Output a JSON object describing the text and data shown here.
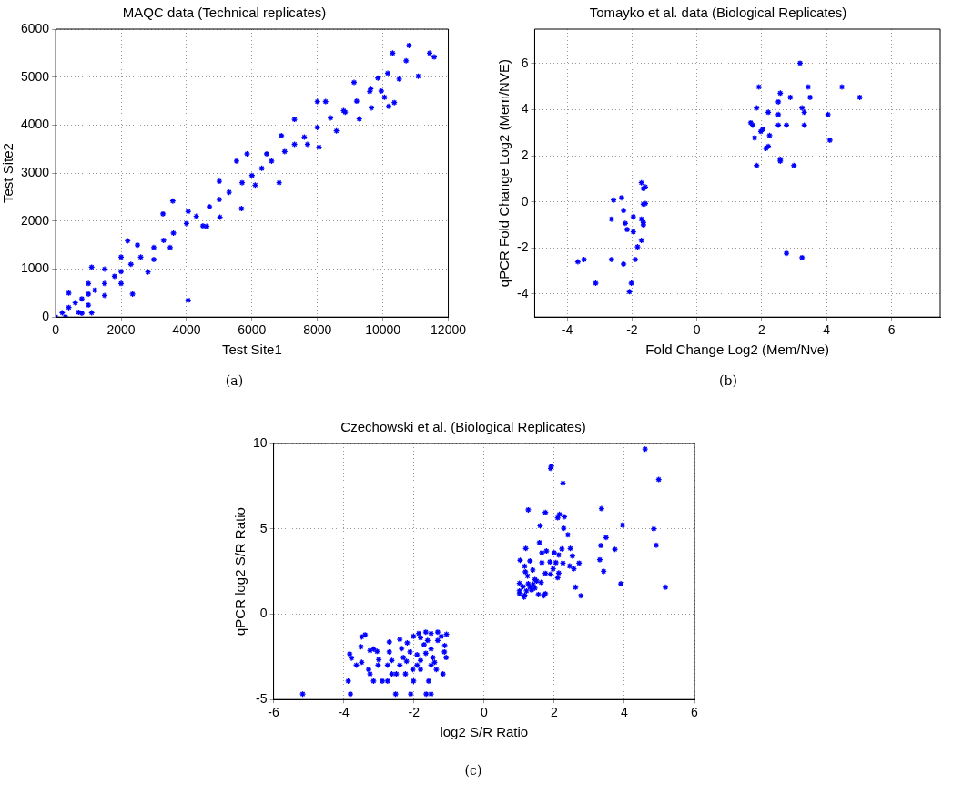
{
  "chart_data": [
    {
      "type": "scatter",
      "title": "MAQC data (Technical replicates)",
      "xlabel": "Test Site1",
      "ylabel": "Test Site2",
      "color": "#0000ff",
      "marker": "cross",
      "grid": true,
      "xlim": [
        0,
        12000
      ],
      "ylim": [
        0,
        6000
      ],
      "xticks": [
        0,
        2000,
        4000,
        6000,
        8000,
        10000,
        12000
      ],
      "yticks": [
        0,
        1000,
        2000,
        3000,
        4000,
        5000,
        6000
      ],
      "annotations": [
        "(a)"
      ],
      "x": [
        10800,
        10300,
        11430,
        11570,
        10710,
        11080,
        10500,
        10150,
        9850,
        9120,
        9630,
        9950,
        10050,
        10350,
        10180,
        9650,
        9280,
        8850,
        8250,
        8000,
        8580,
        8050,
        7700,
        7300,
        6900,
        6830,
        6450,
        6100,
        5850,
        5530,
        5680,
        5000,
        5020,
        4620,
        4050,
        3580,
        3280,
        4050,
        2350,
        2820,
        2200,
        1100,
        1100,
        800,
        0,
        200,
        400,
        600,
        800,
        1000,
        1200,
        1500,
        1800,
        2000,
        2300,
        2600,
        3000,
        3300,
        3600,
        4000,
        4300,
        4700,
        5000,
        5300,
        5700,
        6000,
        6300,
        6600,
        7000,
        7300,
        7600,
        8000,
        8400,
        8800,
        9200,
        9600,
        1000,
        1500,
        1000,
        2000,
        2500,
        3000,
        400,
        700,
        300,
        1500,
        2000,
        3500,
        4500
      ],
      "values": [
        5660,
        5500,
        5500,
        5420,
        5340,
        5020,
        4960,
        5080,
        4980,
        4890,
        4760,
        4710,
        4580,
        4470,
        4390,
        4360,
        4130,
        4270,
        4490,
        4490,
        3880,
        3540,
        3600,
        4120,
        3780,
        2800,
        3400,
        2750,
        3400,
        3250,
        2260,
        2830,
        2080,
        1890,
        2200,
        2420,
        2150,
        350,
        480,
        940,
        1590,
        1040,
        90,
        80,
        0,
        90,
        200,
        300,
        380,
        480,
        560,
        700,
        850,
        950,
        1100,
        1250,
        1450,
        1600,
        1750,
        1950,
        2100,
        2300,
        2450,
        2600,
        2800,
        2950,
        3100,
        3250,
        3450,
        3600,
        3750,
        3950,
        4150,
        4300,
        4500,
        4700,
        700,
        1000,
        250,
        700,
        1500,
        1200,
        500,
        100,
        0,
        450,
        1250,
        1450,
        1900
      ]
    },
    {
      "type": "scatter",
      "title": "Tomayko et al. data (Biological Replicates)",
      "xlabel": "Fold Change Log2 (Mem/Nve)",
      "ylabel": "qPCR Fold Change Log2 (Mem/NVE)",
      "color": "#0000ff",
      "marker": "cross",
      "grid": true,
      "xlim": [
        -5,
        7.5
      ],
      "ylim": [
        -5,
        7.5
      ],
      "xticks": [
        -4,
        -2,
        0,
        2,
        4,
        6
      ],
      "yticks": [
        -4,
        -2,
        0,
        2,
        4,
        6
      ],
      "annotations": [
        "(b)"
      ],
      "x": [
        3.18,
        1.91,
        2.57,
        3.43,
        4.47,
        2.51,
        2.88,
        3.49,
        5.02,
        1.84,
        3.24,
        2.2,
        3.31,
        2.51,
        4.04,
        1.66,
        1.72,
        2.51,
        2.76,
        3.31,
        2.03,
        1.97,
        1.78,
        2.24,
        4.1,
        2.2,
        2.13,
        2.57,
        2.57,
        1.84,
        2.99,
        2.76,
        3.24,
        -1.71,
        -1.65,
        -1.59,
        -2.32,
        -2.57,
        -1.65,
        -1.59,
        -2.26,
        -1.96,
        -2.63,
        -1.71,
        -1.65,
        -1.65,
        -2.21,
        -2.15,
        -1.96,
        -1.71,
        -1.83,
        -3.67,
        -3.48,
        -2.63,
        -1.9,
        -2.26,
        -3.12,
        -2.02,
        -2.08
      ],
      "values": [
        6.02,
        4.99,
        4.72,
        4.99,
        4.99,
        4.34,
        4.54,
        4.54,
        4.54,
        4.08,
        4.08,
        3.89,
        3.89,
        3.79,
        3.79,
        3.43,
        3.33,
        3.33,
        3.33,
        3.33,
        3.15,
        3.06,
        2.78,
        2.88,
        2.68,
        2.41,
        2.32,
        1.85,
        1.77,
        1.58,
        1.58,
        -2.23,
        -2.42,
        0.83,
        0.58,
        0.65,
        0.18,
        0.08,
        -0.1,
        -0.07,
        -0.37,
        -0.65,
        -0.75,
        -0.75,
        -0.89,
        -1.0,
        -0.93,
        -1.2,
        -1.3,
        -1.67,
        -1.95,
        -2.6,
        -2.5,
        -2.5,
        -2.5,
        -2.7,
        -3.53,
        -3.53,
        -3.9
      ]
    },
    {
      "type": "scatter",
      "title": "Czechowski et al. (Biological Replicates)",
      "xlabel": "log2 S/R Ratio",
      "ylabel": "qPCR log2 S/R Ratio",
      "color": "#0000ff",
      "marker": "cross",
      "grid": true,
      "xlim": [
        -6,
        6
      ],
      "ylim": [
        -5,
        10
      ],
      "xticks": [
        -6,
        -4,
        -2,
        0,
        2,
        4,
        6
      ],
      "yticks": [
        -5,
        0,
        5,
        10
      ],
      "annotations": [
        "(c)"
      ],
      "x": [
        4.59,
        1.92,
        1.9,
        2.25,
        4.98,
        1.26,
        1.75,
        3.35,
        2.15,
        2.1,
        2.29,
        1.6,
        3.95,
        2.27,
        4.84,
        2.39,
        3.48,
        1.58,
        3.33,
        4.91,
        1.19,
        2.22,
        2.46,
        3.73,
        1.78,
        1.65,
        2.0,
        2.13,
        2.52,
        1.03,
        1.31,
        1.65,
        1.88,
        2.05,
        2.25,
        2.71,
        3.3,
        1.16,
        2.44,
        2.56,
        1.39,
        1.97,
        1.18,
        1.75,
        1.9,
        2.13,
        3.41,
        1.24,
        2.1,
        1.45,
        1.5,
        1.63,
        1.01,
        1.26,
        1.4,
        3.9,
        1.11,
        1.31,
        1.45,
        2.61,
        5.17,
        1.01,
        1.21,
        1.36,
        1.01,
        1.16,
        1.55,
        1.7,
        2.76,
        1.14,
        1.75,
        -5.17,
        -3.81,
        -2.52,
        -2.09,
        -1.65,
        -1.51,
        -3.87,
        -3.15,
        -2.9,
        -2.75,
        -2.01,
        -1.58,
        -3.25,
        -2.63,
        -2.5,
        -2.24,
        -1.17,
        -3.29,
        -2.03,
        -1.81,
        -1.36,
        -3.64,
        -3.49,
        -3.02,
        -2.75,
        -2.4,
        -1.91,
        -1.51,
        -3.78,
        -3.0,
        -2.63,
        -2.3,
        -1.81,
        -1.08,
        -3.83,
        -3.25,
        -2.7,
        -2.11,
        -1.66,
        -1.13,
        -3.51,
        -3.15,
        -2.35,
        -1.51,
        -3.05,
        -2.4,
        -2.7,
        -2.19,
        -1.81,
        -1.61,
        -1.12,
        -3.39,
        -3.49,
        -2.01,
        -1.86,
        -1.66,
        -1.32,
        -1.07,
        -1.51,
        -1.22,
        -1.32,
        -1.71,
        -1.91,
        -1.46,
        -2.21,
        -1.41
      ],
      "values": [
        9.67,
        8.67,
        8.54,
        7.67,
        7.89,
        6.11,
        5.96,
        6.18,
        5.85,
        5.65,
        5.71,
        5.18,
        5.22,
        5.03,
        5.0,
        4.65,
        4.49,
        4.19,
        4.02,
        4.04,
        3.85,
        3.82,
        3.85,
        3.8,
        3.7,
        3.6,
        3.6,
        3.47,
        3.41,
        3.16,
        3.12,
        3.02,
        3.06,
        3.02,
        2.99,
        2.99,
        3.19,
        2.81,
        2.82,
        2.66,
        2.59,
        2.66,
        2.48,
        2.39,
        2.34,
        2.41,
        2.51,
        2.24,
        2.14,
        2.03,
        1.94,
        1.86,
        1.81,
        1.78,
        1.73,
        1.78,
        1.61,
        1.58,
        1.53,
        1.58,
        1.58,
        1.36,
        1.36,
        1.41,
        1.2,
        1.11,
        1.15,
        1.08,
        1.08,
        1.0,
        1.2,
        -4.68,
        -4.68,
        -4.68,
        -4.68,
        -4.68,
        -4.68,
        -3.92,
        -3.92,
        -3.92,
        -3.92,
        -3.92,
        -3.92,
        -3.5,
        -3.5,
        -3.5,
        -3.5,
        -3.5,
        -3.24,
        -3.24,
        -3.24,
        -3.24,
        -2.99,
        -2.82,
        -2.99,
        -2.99,
        -2.99,
        -2.99,
        -2.99,
        -2.57,
        -2.66,
        -2.71,
        -2.54,
        -2.71,
        -2.54,
        -2.33,
        -2.13,
        -2.21,
        -2.21,
        -2.29,
        -2.21,
        -1.91,
        -2.04,
        -2.01,
        -2.04,
        -2.18,
        -1.48,
        -1.63,
        -1.68,
        -1.38,
        -1.54,
        -1.84,
        -1.21,
        -1.33,
        -1.3,
        -1.13,
        -1.05,
        -1.05,
        -1.18,
        -1.13,
        -1.3,
        -1.54,
        -1.79,
        -2.38,
        -2.54,
        -2.76,
        -2.82
      ]
    }
  ]
}
